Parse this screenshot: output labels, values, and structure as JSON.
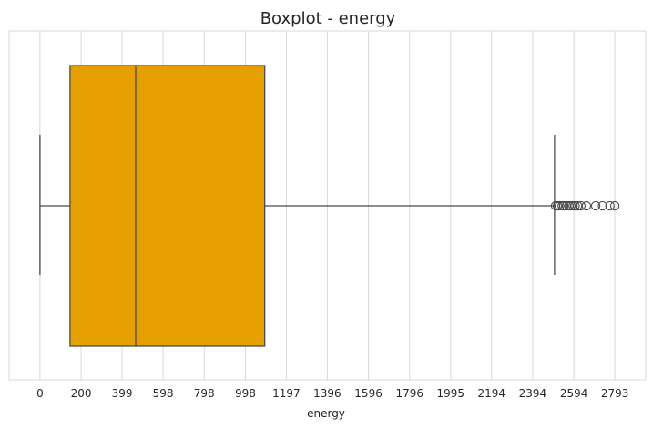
{
  "chart_data": {
    "type": "boxplot",
    "title": "Boxplot - energy",
    "xlabel": "energy",
    "ylabel": "",
    "orientation": "horizontal",
    "xlim": [
      -150,
      2943
    ],
    "xticks": [
      0,
      200,
      399,
      598,
      798,
      998,
      1197,
      1396,
      1596,
      1796,
      1995,
      2194,
      2394,
      2594,
      2793
    ],
    "grid": "vertical",
    "colors": {
      "box": "#E69F00",
      "line": "#4a4a4a",
      "grid": "#d9d9d9",
      "frame": "#d9d9d9"
    },
    "box": {
      "whisker_low": 0,
      "q1": 146,
      "median": 465,
      "q3": 1092,
      "whisker_high": 2500
    },
    "outliers": [
      2505,
      2514,
      2525,
      2537,
      2545,
      2558,
      2570,
      2580,
      2590,
      2600,
      2612,
      2628,
      2655,
      2700,
      2733,
      2769,
      2793
    ]
  }
}
